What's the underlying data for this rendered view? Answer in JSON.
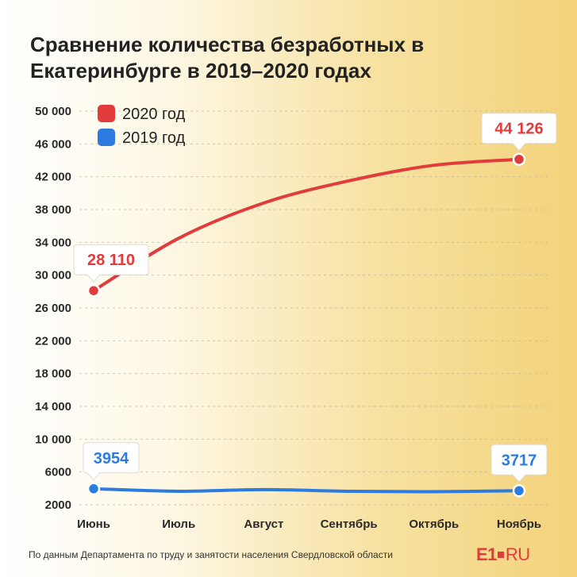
{
  "title": "Сравнение количества безработных в Екатеринбурге в 2019–2020 годах",
  "footer": "По данным Департамента по труду и занятости населения Свердловской области",
  "logo": {
    "main": "E1",
    "suffix": "RU"
  },
  "colors": {
    "series_2020": "#e23b3b",
    "series_2019": "#2b7be0"
  },
  "chart_data": {
    "type": "line",
    "categories": [
      "Июнь",
      "Июль",
      "Август",
      "Сентябрь",
      "Октябрь",
      "Ноябрь"
    ],
    "yticks": [
      2000,
      6000,
      10000,
      14000,
      18000,
      22000,
      26000,
      30000,
      34000,
      38000,
      42000,
      46000,
      50000
    ],
    "ytick_labels": [
      "2000",
      "6000",
      "10 000",
      "14 000",
      "18 000",
      "22 000",
      "26 000",
      "30 000",
      "34 000",
      "38 000",
      "42 000",
      "46 000",
      "50 000"
    ],
    "ylim": [
      2000,
      50000
    ],
    "grid": true,
    "legend_position": "top-left",
    "series": [
      {
        "name": "2020 год",
        "values": [
          28110,
          34500,
          38800,
          41500,
          43400,
          44126
        ],
        "callouts": [
          {
            "index": 0,
            "label": "28 110"
          },
          {
            "index": 5,
            "label": "44 126"
          }
        ]
      },
      {
        "name": "2019 год",
        "values": [
          3954,
          3650,
          3850,
          3650,
          3600,
          3717
        ],
        "callouts": [
          {
            "index": 0,
            "label": "3954"
          },
          {
            "index": 5,
            "label": "3717"
          }
        ]
      }
    ]
  }
}
